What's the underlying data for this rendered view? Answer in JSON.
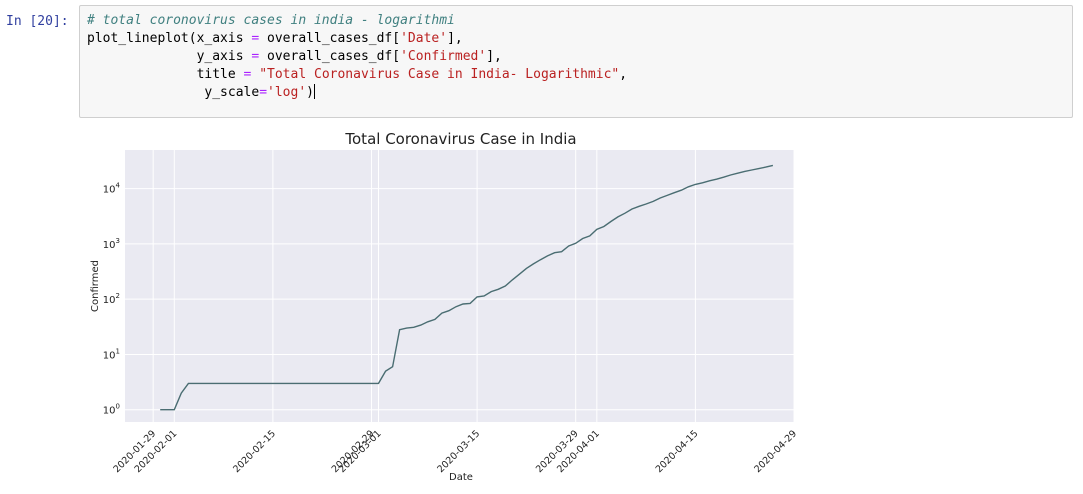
{
  "cell": {
    "prompt": "In [20]:",
    "code": {
      "comment": "# total coronovirus cases in india - logarithmi",
      "line2_fn": "plot_lineplot(x_axis ",
      "line2_arg": " overall_cases_df[",
      "line2_key": "'Date'",
      "line2_end": "],",
      "line3_lead": "              y_axis ",
      "line3_arg": " overall_cases_df[",
      "line3_key": "'Confirmed'",
      "line3_end": "],",
      "line4_lead": "              title ",
      "line4_str": "\"Total Coronavirus Case in India- Logarithmic\"",
      "line4_end": ",",
      "line5_lead": "               y_scale",
      "line5_str": "'log'",
      "line5_end": ")",
      "op": "="
    }
  },
  "chart_data": {
    "type": "line",
    "title": "Total Coronavirus Case in India",
    "xlabel": "Date",
    "ylabel": "Confirmed",
    "yscale": "log",
    "ylim": [
      0.6,
      50000
    ],
    "xlim": [
      "2020-01-25",
      "2020-04-29"
    ],
    "grid": true,
    "x_ticks": [
      "2020-01-29",
      "2020-02-01",
      "2020-02-15",
      "2020-02-29",
      "2020-03-01",
      "2020-03-15",
      "2020-03-29",
      "2020-04-01",
      "2020-04-15",
      "2020-04-29"
    ],
    "y_ticks": [
      {
        "value": 1,
        "base": "10",
        "exp": "0"
      },
      {
        "value": 10,
        "base": "10",
        "exp": "1"
      },
      {
        "value": 100,
        "base": "10",
        "exp": "2"
      },
      {
        "value": 1000,
        "base": "10",
        "exp": "3"
      },
      {
        "value": 10000,
        "base": "10",
        "exp": "4"
      }
    ],
    "line_color": "#4a6d72",
    "series": [
      {
        "x": [
          "2020-01-30",
          "2020-02-01",
          "2020-02-02",
          "2020-02-03",
          "2020-02-04",
          "2020-03-01",
          "2020-03-02",
          "2020-03-03",
          "2020-03-04",
          "2020-03-05",
          "2020-03-06",
          "2020-03-07",
          "2020-03-08",
          "2020-03-09",
          "2020-03-10",
          "2020-03-11",
          "2020-03-12",
          "2020-03-13",
          "2020-03-14",
          "2020-03-15",
          "2020-03-16",
          "2020-03-17",
          "2020-03-18",
          "2020-03-19",
          "2020-03-20",
          "2020-03-21",
          "2020-03-22",
          "2020-03-23",
          "2020-03-24",
          "2020-03-25",
          "2020-03-26",
          "2020-03-27",
          "2020-03-28",
          "2020-03-29",
          "2020-03-30",
          "2020-03-31",
          "2020-04-01",
          "2020-04-02",
          "2020-04-03",
          "2020-04-04",
          "2020-04-05",
          "2020-04-06",
          "2020-04-07",
          "2020-04-08",
          "2020-04-09",
          "2020-04-10",
          "2020-04-11",
          "2020-04-12",
          "2020-04-13",
          "2020-04-14",
          "2020-04-15",
          "2020-04-16",
          "2020-04-17",
          "2020-04-18",
          "2020-04-19",
          "2020-04-20",
          "2020-04-21",
          "2020-04-22",
          "2020-04-23",
          "2020-04-24",
          "2020-04-25",
          "2020-04-26"
        ],
        "y": [
          1,
          1,
          2,
          3,
          3,
          3,
          5,
          6,
          28,
          30,
          31,
          34,
          39,
          43,
          56,
          62,
          73,
          82,
          84,
          110,
          114,
          137,
          151,
          173,
          223,
          283,
          360,
          434,
          519,
          606,
          694,
          724,
          918,
          1024,
          1251,
          1397,
          1834,
          2069,
          2547,
          3082,
          3588,
          4281,
          4789,
          5274,
          5865,
          6761,
          7529,
          8447,
          9352,
          10815,
          11933,
          12759,
          13835,
          14792,
          16116,
          17656,
          18985,
          20471,
          21700,
          23077,
          24530,
          26283
        ]
      }
    ]
  }
}
